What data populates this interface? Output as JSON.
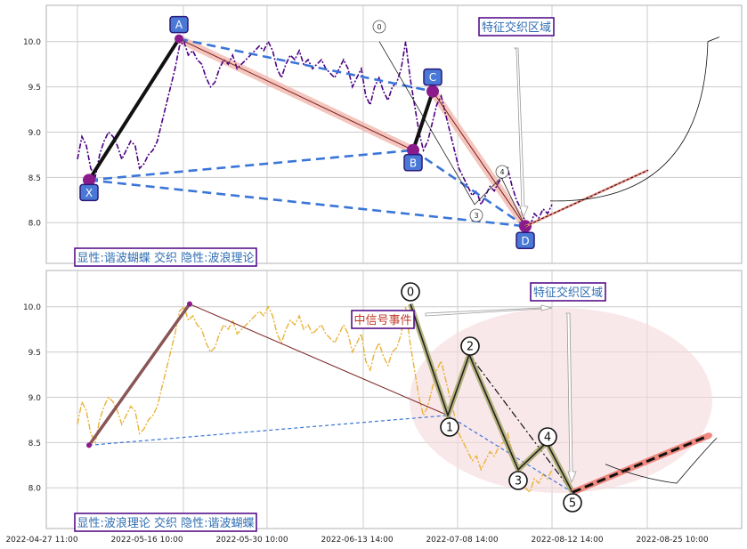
{
  "colors": {
    "grid": "#cccccc",
    "frame": "#b0b0b0",
    "price_top": "#4b0082",
    "price_bottom": "#e8b33a",
    "label_fill": "#4a78d6",
    "label_stroke": "#2a1a7a",
    "pivot": "#8b1a8b",
    "dashed_blue": "#3a75d8",
    "black_leg": "#111111",
    "salmon": "#f08a80",
    "band": "#f2b8ae",
    "olive": "#a8a86a",
    "ellipse": "#f5d8dc",
    "title_text_top": "#2f6db3",
    "title_text_red": "#c0392b",
    "box_stroke": "#4b0082"
  },
  "chart_data": [
    {
      "type": "line",
      "panel": "top",
      "x_labels": [
        "2022-04-27 11:00",
        "2022-05-16 10:00",
        "2022-05-30 10:00",
        "2022-06-13 14:00",
        "2022-07-08 14:00",
        "2022-08-12 14:00",
        "2022-08-25 10:00"
      ],
      "yticks": [
        8.0,
        8.5,
        9.0,
        9.5,
        10.0
      ],
      "ylim": [
        7.55,
        10.4
      ],
      "grid": true,
      "series": [
        {
          "values": [
            8.7,
            8.95,
            8.85,
            8.6,
            8.5,
            8.75,
            8.9,
            9.0,
            8.95,
            8.85,
            8.7,
            8.8,
            8.9,
            8.85,
            8.6,
            8.65,
            8.75,
            8.8,
            8.9,
            9.1,
            9.3,
            9.5,
            9.7,
            9.95,
            10.0,
            9.85,
            9.9,
            9.8,
            9.75,
            9.6,
            9.5,
            9.55,
            9.7,
            9.8,
            9.75,
            9.85,
            9.7,
            9.75,
            9.8,
            9.85,
            9.9,
            9.95,
            9.9,
            10.0,
            9.9,
            9.7,
            9.6,
            9.75,
            9.85,
            9.8,
            9.9,
            9.75,
            9.8,
            9.7,
            9.75,
            9.8,
            9.7,
            9.65,
            9.6,
            9.7,
            9.8,
            9.7,
            9.5,
            9.6,
            9.7,
            9.4,
            9.3,
            9.5,
            9.6,
            9.45,
            9.35,
            9.5,
            9.55,
            9.7,
            10.0,
            9.6,
            9.3,
            9.0,
            8.8,
            8.9,
            9.1,
            9.3,
            9.4,
            9.2,
            9.0,
            8.8,
            8.6,
            8.5,
            8.4,
            8.3,
            8.35,
            8.2,
            8.3,
            8.4,
            8.35,
            8.45,
            8.5,
            8.6,
            8.4,
            8.25,
            8.15,
            8.0,
            7.95,
            8.1,
            8.05,
            8.15,
            8.1,
            8.2
          ]
        }
      ],
      "pattern_labels": [
        "X",
        "A",
        "B",
        "C",
        "D"
      ],
      "wave_labels": [
        "0",
        "3",
        "4"
      ],
      "annotation": "特征交织区域",
      "caption": "显性:谐波蝴蝶 交织 隐性:波浪理论"
    },
    {
      "type": "line",
      "panel": "bottom",
      "x_labels": [
        "2022-04-27 11:00",
        "2022-05-16 10:00",
        "2022-05-30 10:00",
        "2022-06-13 14:00",
        "2022-07-08 14:00",
        "2022-08-12 14:00",
        "2022-08-25 10:00"
      ],
      "yticks": [
        8.0,
        8.5,
        9.0,
        9.5,
        10.0
      ],
      "ylim": [
        7.55,
        10.4
      ],
      "grid": true,
      "series": [
        {
          "values": [
            8.7,
            8.95,
            8.85,
            8.6,
            8.5,
            8.75,
            8.9,
            9.0,
            8.95,
            8.85,
            8.7,
            8.8,
            8.9,
            8.85,
            8.6,
            8.65,
            8.75,
            8.8,
            8.9,
            9.1,
            9.3,
            9.5,
            9.7,
            9.95,
            10.0,
            9.85,
            9.9,
            9.8,
            9.75,
            9.6,
            9.5,
            9.55,
            9.7,
            9.8,
            9.75,
            9.85,
            9.7,
            9.75,
            9.8,
            9.85,
            9.9,
            9.95,
            9.9,
            10.0,
            9.9,
            9.7,
            9.6,
            9.75,
            9.85,
            9.8,
            9.9,
            9.75,
            9.8,
            9.7,
            9.75,
            9.8,
            9.7,
            9.65,
            9.6,
            9.7,
            9.8,
            9.7,
            9.5,
            9.6,
            9.7,
            9.4,
            9.3,
            9.5,
            9.6,
            9.45,
            9.35,
            9.5,
            9.55,
            9.7,
            10.0,
            9.6,
            9.3,
            9.0,
            8.8,
            8.9,
            9.1,
            9.3,
            9.4,
            9.2,
            9.0,
            8.8,
            8.6,
            8.5,
            8.4,
            8.3,
            8.35,
            8.2,
            8.3,
            8.4,
            8.35,
            8.45,
            8.5,
            8.6,
            8.4,
            8.25,
            8.15,
            8.0,
            7.95,
            8.1,
            8.05,
            8.15,
            8.1,
            8.2
          ]
        }
      ],
      "wave_labels": [
        "0",
        "1",
        "2",
        "3",
        "4",
        "5"
      ],
      "annotation": "特征交织区域",
      "event_label": "中信号事件",
      "caption": "显性:波浪理论 交织 隐性:谐波蝴蝶"
    }
  ]
}
